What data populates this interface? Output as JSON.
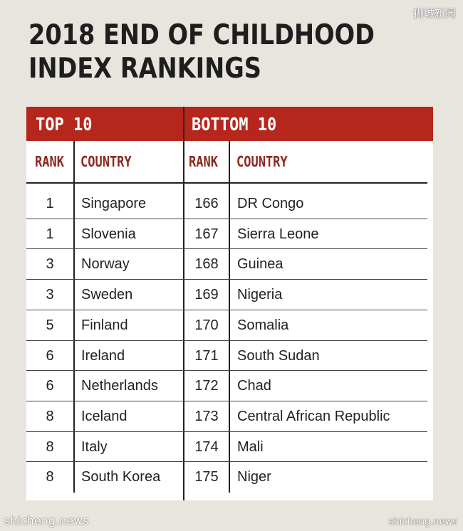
{
  "title_line1": "2018 END OF CHILDHOOD",
  "title_line2": "INDEX RANKINGS",
  "watermarks": {
    "top_right": "狮城新闻",
    "bottom_left": "shicheng.news",
    "bottom_right": "shicheng.news"
  },
  "header": {
    "top_label": "TOP 10",
    "bottom_label": "BOTTOM 10"
  },
  "columns": {
    "rank": "RANK",
    "country": "COUNTRY"
  },
  "top10": [
    {
      "rank": "1",
      "country": "Singapore"
    },
    {
      "rank": "1",
      "country": "Slovenia"
    },
    {
      "rank": "3",
      "country": "Norway"
    },
    {
      "rank": "3",
      "country": "Sweden"
    },
    {
      "rank": "5",
      "country": "Finland"
    },
    {
      "rank": "6",
      "country": "Ireland"
    },
    {
      "rank": "6",
      "country": "Netherlands"
    },
    {
      "rank": "8",
      "country": "Iceland"
    },
    {
      "rank": "8",
      "country": "Italy"
    },
    {
      "rank": "8",
      "country": "South Korea"
    }
  ],
  "bottom10": [
    {
      "rank": "166",
      "country": "DR Congo"
    },
    {
      "rank": "167",
      "country": "Sierra Leone"
    },
    {
      "rank": "168",
      "country": "Guinea"
    },
    {
      "rank": "169",
      "country": "Nigeria"
    },
    {
      "rank": "170",
      "country": "Somalia"
    },
    {
      "rank": "171",
      "country": "South Sudan"
    },
    {
      "rank": "172",
      "country": "Chad"
    },
    {
      "rank": "173",
      "country": "Central African Republic"
    },
    {
      "rank": "174",
      "country": "Mali"
    },
    {
      "rank": "175",
      "country": "Niger"
    }
  ],
  "colors": {
    "header_red": "#b5261c",
    "subheader_text": "#8b2a22",
    "page_background": "#e8e4de"
  }
}
